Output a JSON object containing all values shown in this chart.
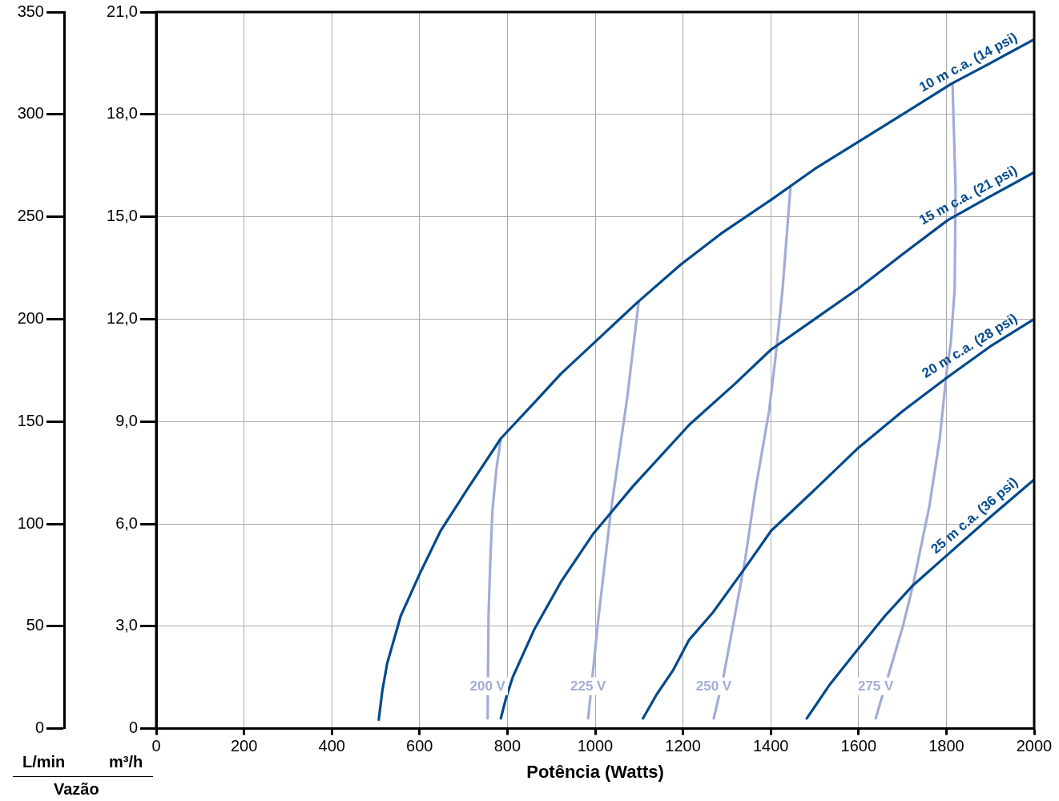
{
  "chart_data": {
    "type": "line",
    "xlabel": "Potência (Watts)",
    "ylabel": "m³/h",
    "y2label": "L/min",
    "annotations": [
      "Vazão"
    ],
    "xlim": [
      0,
      2000
    ],
    "xticks": [
      0,
      200,
      400,
      600,
      800,
      1000,
      1200,
      1400,
      1600,
      1800,
      2000
    ],
    "ylim": [
      0,
      21
    ],
    "yticks": [
      {
        "value": 0,
        "label": "0"
      },
      {
        "value": 3,
        "label": "3,0"
      },
      {
        "value": 6,
        "label": "6,0"
      },
      {
        "value": 9,
        "label": "9,0"
      },
      {
        "value": 12,
        "label": "12,0"
      },
      {
        "value": 15,
        "label": "15,0"
      },
      {
        "value": 18,
        "label": "18,0"
      },
      {
        "value": 21,
        "label": "21,0"
      }
    ],
    "y2lim": [
      0,
      350
    ],
    "y2ticks": [
      0,
      50,
      100,
      150,
      200,
      250,
      300,
      350
    ],
    "grid": true,
    "legend": false,
    "marker": "none",
    "series": [
      {
        "name": "10 m c.a. (14 psi)",
        "color": "#004a8c",
        "x": [
          507,
          515,
          526,
          557,
          599,
          648,
          708,
          785,
          872,
          922,
          1097,
          1195,
          1286,
          1401,
          1500,
          1600,
          1700,
          1812,
          1900,
          2000
        ],
        "values": [
          0.26,
          1.1,
          1.9,
          3.3,
          4.5,
          5.8,
          7.0,
          8.5,
          9.7,
          10.4,
          12.5,
          13.6,
          14.5,
          15.5,
          16.4,
          17.2,
          18.0,
          18.9,
          19.5,
          20.2
        ]
      },
      {
        "name": "15 m c.a. (21 psi)",
        "color": "#004a8c",
        "x": [
          785,
          797,
          812,
          861,
          922,
          995,
          1086,
          1214,
          1318,
          1400,
          1500,
          1600,
          1700,
          1803,
          1900,
          2000
        ],
        "values": [
          0.3,
          0.9,
          1.5,
          2.9,
          4.3,
          5.7,
          7.1,
          8.9,
          10.1,
          11.1,
          12.0,
          12.9,
          13.9,
          14.9,
          15.6,
          16.3
        ]
      },
      {
        "name": "20 m c.a. (28 psi)",
        "color": "#004a8c",
        "x": [
          1109,
          1140,
          1177,
          1214,
          1268,
          1341,
          1401,
          1500,
          1597,
          1700,
          1803,
          1900,
          2000
        ],
        "values": [
          0.3,
          1.0,
          1.7,
          2.6,
          3.4,
          4.7,
          5.8,
          7.0,
          8.2,
          9.3,
          10.3,
          11.2,
          12.0
        ]
      },
      {
        "name": "25 m c.a. (36 psi)",
        "color": "#004a8c",
        "x": [
          1482,
          1535,
          1597,
          1660,
          1724,
          1803,
          1900,
          2000
        ],
        "values": [
          0.3,
          1.3,
          2.3,
          3.3,
          4.2,
          5.1,
          6.2,
          7.3
        ]
      },
      {
        "name": "200 V",
        "color": "#a3acd6",
        "x": [
          755,
          757,
          761,
          766,
          775,
          785
        ],
        "values": [
          0.3,
          3.3,
          4.9,
          6.4,
          7.6,
          8.5
        ]
      },
      {
        "name": "225 V",
        "color": "#a3acd6",
        "x": [
          984,
          1007,
          1036,
          1073,
          1099
        ],
        "values": [
          0.3,
          3.2,
          6.4,
          9.7,
          12.5
        ]
      },
      {
        "name": "250 V",
        "color": "#a3acd6",
        "x": [
          1270,
          1292,
          1341,
          1365,
          1396,
          1411,
          1427,
          1445
        ],
        "values": [
          0.3,
          1.5,
          4.9,
          7.0,
          9.3,
          10.9,
          12.9,
          15.9
        ]
      },
      {
        "name": "275 V",
        "color": "#a3acd6",
        "x": [
          1639,
          1701,
          1724,
          1761,
          1785,
          1801,
          1810,
          1819,
          1821,
          1814
        ],
        "values": [
          0.3,
          3.0,
          4.2,
          6.5,
          8.5,
          10.5,
          11.3,
          12.9,
          15.8,
          18.9
        ]
      }
    ]
  }
}
